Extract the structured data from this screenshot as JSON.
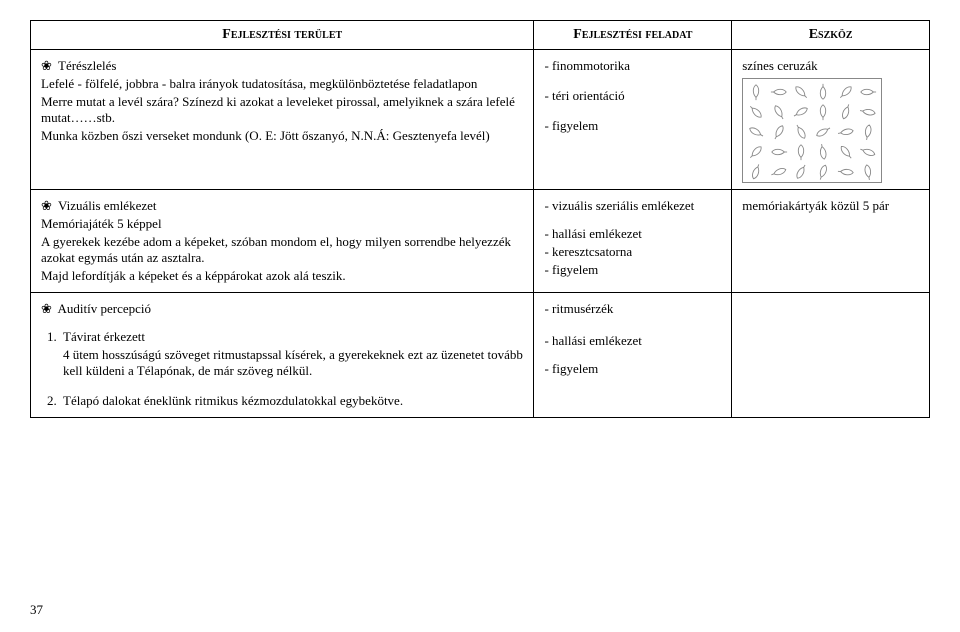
{
  "headers": {
    "area": "Fejlesztési terület",
    "task": "Fejlesztési feladat",
    "tool": "Eszköz"
  },
  "row1": {
    "bullet_glyph": "❀",
    "title": "Térészlelés",
    "p1": "Lefelé - fölfelé, jobbra - balra irányok tudatosítása, megkülönböztetése feladatlapon",
    "p2": "Merre mutat a levél szára? Színezd ki azokat a leveleket pirossal, amelyiknek a szára lefelé mutat……stb.",
    "p3": "Munka közben őszi verseket mondunk (O. E: Jött őszanyó, N.N.Á: Gesztenyefa levél)",
    "task1": "- finommotorika",
    "task2": "- téri orientáció",
    "task3": "- figyelem",
    "tool": "színes ceruzák"
  },
  "row2": {
    "bullet_glyph": "❀",
    "title": "Vizuális emlékezet",
    "p1": "Memóriajáték 5 képpel",
    "p2": "A gyerekek kezébe adom a képeket, szóban mondom el, hogy milyen sorrendbe helyezzék azokat egymás után az asztalra.",
    "p3": "Majd lefordítják a képeket és a képpárokat azok alá teszik.",
    "task1": "- vizuális szeriális emlékezet",
    "task2": "- hallási emlékezet",
    "task3": "- keresztcsatorna",
    "task4": "- figyelem",
    "tool": "memóriakártyák közül  5 pár"
  },
  "row3": {
    "bullet_glyph": "❀",
    "title": "Auditív percepció",
    "n1_label": "1.",
    "n1_title": "Távirat érkezett",
    "n1_body": "4 ütem hosszúságú szöveget ritmustapssal kísérek, a gyerekeknek ezt az üzenetet tovább kell küldeni a Télapónak, de már szöveg nélkül.",
    "n2_label": "2.",
    "n2_body": "Télapó dalokat éneklünk ritmikus kézmozdulatokkal egybekötve.",
    "task1": "- ritmusérzék",
    "task2": "- hallási emlékezet",
    "task3": "- figyelem"
  },
  "page_number": "37",
  "leaf_stroke": "#888888"
}
